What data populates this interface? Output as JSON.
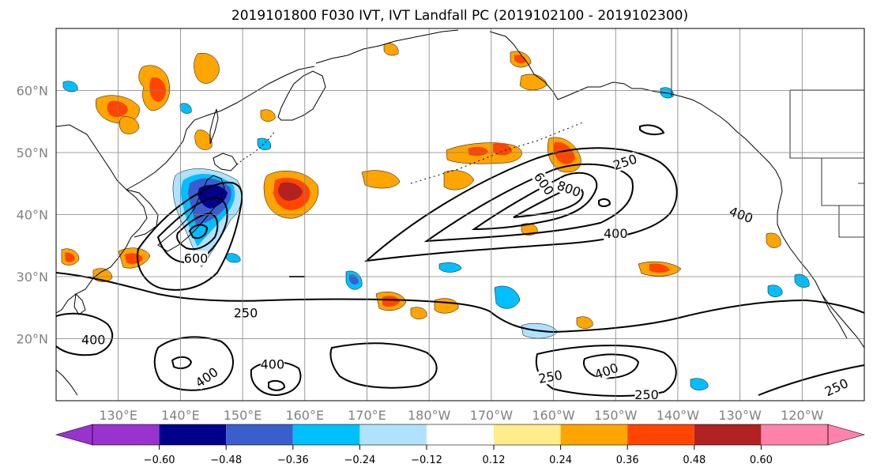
{
  "title": "2019101800 F030 IVT, IVT Landfall PC (2019102100 - 2019102300)",
  "map": {
    "lon_range_deg_east": [
      120,
      250
    ],
    "lat_range_deg": [
      10,
      70
    ],
    "lat_ticks": [
      {
        "value": 20,
        "label": "20°N"
      },
      {
        "value": 30,
        "label": "30°N"
      },
      {
        "value": 40,
        "label": "40°N"
      },
      {
        "value": 50,
        "label": "50°N"
      },
      {
        "value": 60,
        "label": "60°N"
      }
    ],
    "lon_ticks": [
      {
        "value": 130,
        "label": "130°E"
      },
      {
        "value": 140,
        "label": "140°E"
      },
      {
        "value": 150,
        "label": "150°E"
      },
      {
        "value": 160,
        "label": "160°E"
      },
      {
        "value": 170,
        "label": "170°E"
      },
      {
        "value": 180,
        "label": "180°W"
      },
      {
        "value": 190,
        "label": "170°W"
      },
      {
        "value": 200,
        "label": "160°W"
      },
      {
        "value": 210,
        "label": "150°W"
      },
      {
        "value": 220,
        "label": "140°W"
      },
      {
        "value": 230,
        "label": "130°W"
      },
      {
        "value": 240,
        "label": "120°W"
      }
    ],
    "grid": true,
    "contour_labels": [
      {
        "text": "250",
        "lon": 211.5,
        "lat": 48.5,
        "rot": 18
      },
      {
        "text": "400",
        "lon": 230.2,
        "lat": 40.0,
        "rot": -20
      },
      {
        "text": "400",
        "lon": 210.0,
        "lat": 37.0,
        "rot": 0
      },
      {
        "text": "600",
        "lon": 198.5,
        "lat": 45.0,
        "rot": -55
      },
      {
        "text": "800",
        "lon": 202.5,
        "lat": 44.2,
        "rot": -20
      },
      {
        "text": "600",
        "lon": 142.5,
        "lat": 33.0,
        "rot": 0
      },
      {
        "text": "250",
        "lon": 150.5,
        "lat": 24.2,
        "rot": 0
      },
      {
        "text": "400",
        "lon": 126.0,
        "lat": 19.9,
        "rot": 0
      },
      {
        "text": "400",
        "lon": 154.8,
        "lat": 15.9,
        "rot": 0
      },
      {
        "text": "400",
        "lon": 144.2,
        "lat": 13.8,
        "rot": 35
      },
      {
        "text": "250",
        "lon": 199.5,
        "lat": 13.9,
        "rot": 10
      },
      {
        "text": "400",
        "lon": 208.5,
        "lat": 14.8,
        "rot": 20
      },
      {
        "text": "250",
        "lon": 215.0,
        "lat": 11.0,
        "rot": 0
      },
      {
        "text": "250",
        "lon": 245.5,
        "lat": 12.2,
        "rot": 25
      }
    ]
  },
  "colorbar": {
    "ticks": [
      "−0.60",
      "−0.48",
      "−0.36",
      "−0.24",
      "−0.12",
      "0.12",
      "0.24",
      "0.36",
      "0.48",
      "0.60"
    ],
    "colors": {
      "below": "#9a32cd",
      "b1": "#00008b",
      "b2": "#3a5fcd",
      "b3": "#00bfff",
      "b4": "#b0e2ff",
      "b5": "#ffffff",
      "b6": "#ffec8b",
      "b7": "#ffa500",
      "b8": "#ff4500",
      "b9": "#b22222",
      "above": "#ff82ab"
    }
  }
}
